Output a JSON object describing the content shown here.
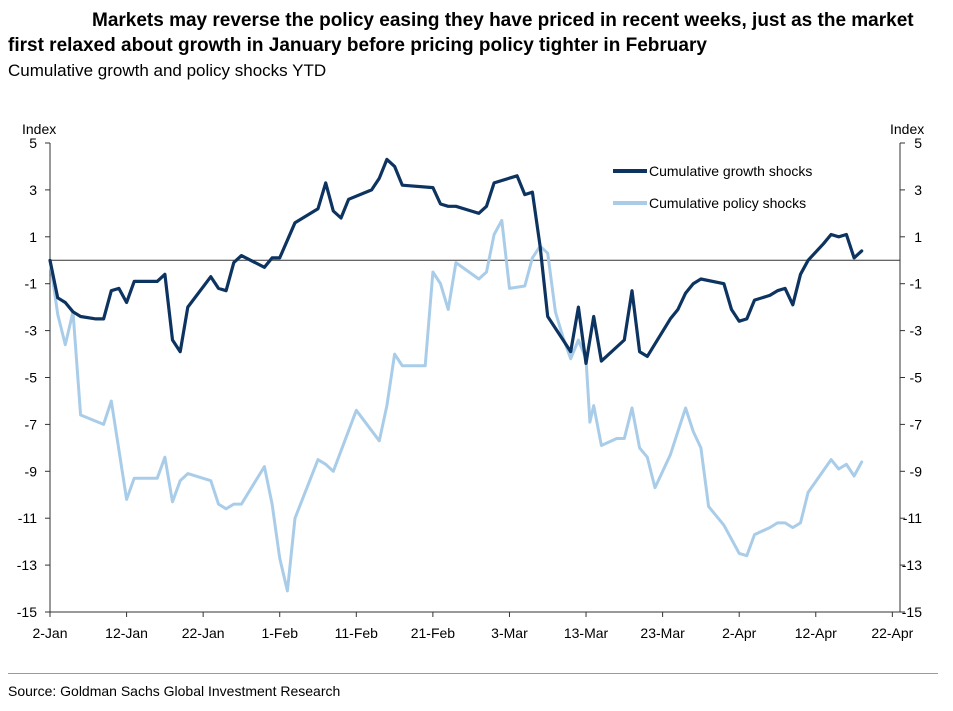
{
  "header": {
    "title": "Markets may reverse the policy easing they have priced in recent weeks, just as the market first relaxed about growth in January before pricing policy tighter in February",
    "subtitle": "Cumulative growth and policy shocks YTD"
  },
  "footer": {
    "source": "Source: Goldman Sachs Global Investment Research"
  },
  "chart_data": {
    "type": "line",
    "ylabel_left": "Index",
    "ylabel_right": "Index",
    "ylim": [
      -15,
      5
    ],
    "yticks": [
      5,
      3,
      1,
      -1,
      -3,
      -5,
      -7,
      -9,
      -11,
      -13,
      -15
    ],
    "xlim": [
      0,
      111
    ],
    "xticks": [
      {
        "label": "2-Jan",
        "day": 0
      },
      {
        "label": "12-Jan",
        "day": 10
      },
      {
        "label": "22-Jan",
        "day": 20
      },
      {
        "label": "1-Feb",
        "day": 30
      },
      {
        "label": "11-Feb",
        "day": 40
      },
      {
        "label": "21-Feb",
        "day": 50
      },
      {
        "label": "3-Mar",
        "day": 60
      },
      {
        "label": "13-Mar",
        "day": 70
      },
      {
        "label": "23-Mar",
        "day": 80
      },
      {
        "label": "2-Apr",
        "day": 90
      },
      {
        "label": "12-Apr",
        "day": 100
      },
      {
        "label": "22-Apr",
        "day": 110
      }
    ],
    "legend_position": "top-right",
    "grid": false,
    "zero_line": true,
    "series": [
      {
        "name": "Cumulative growth shocks",
        "color": "#0d3461",
        "points": [
          [
            0,
            0
          ],
          [
            1,
            -1.6
          ],
          [
            2,
            -1.8
          ],
          [
            3,
            -2.2
          ],
          [
            4,
            -2.4
          ],
          [
            6,
            -2.5
          ],
          [
            7,
            -2.5
          ],
          [
            8,
            -1.3
          ],
          [
            9,
            -1.2
          ],
          [
            10,
            -1.8
          ],
          [
            11,
            -0.9
          ],
          [
            14,
            -0.9
          ],
          [
            15,
            -0.6
          ],
          [
            16,
            -3.4
          ],
          [
            17,
            -3.9
          ],
          [
            18,
            -2
          ],
          [
            21,
            -0.7
          ],
          [
            22,
            -1.2
          ],
          [
            23,
            -1.3
          ],
          [
            24,
            -0.1
          ],
          [
            25,
            0.2
          ],
          [
            28,
            -0.3
          ],
          [
            29,
            0.1
          ],
          [
            30,
            0.1
          ],
          [
            32,
            1.6
          ],
          [
            35,
            2.2
          ],
          [
            36,
            3.3
          ],
          [
            37,
            2.1
          ],
          [
            38,
            1.8
          ],
          [
            39,
            2.6
          ],
          [
            42,
            3
          ],
          [
            43,
            3.5
          ],
          [
            44,
            4.3
          ],
          [
            45,
            4
          ],
          [
            46,
            3.2
          ],
          [
            50,
            3.1
          ],
          [
            51,
            2.4
          ],
          [
            52,
            2.3
          ],
          [
            53,
            2.3
          ],
          [
            55,
            2.1
          ],
          [
            56,
            2
          ],
          [
            57,
            2.3
          ],
          [
            58,
            3.3
          ],
          [
            61,
            3.6
          ],
          [
            62,
            2.8
          ],
          [
            63,
            2.9
          ],
          [
            64,
            0.6
          ],
          [
            65,
            -2.4
          ],
          [
            67,
            -3.4
          ],
          [
            68,
            -3.9
          ],
          [
            69,
            -2
          ],
          [
            70,
            -4.4
          ],
          [
            71,
            -2.4
          ],
          [
            72,
            -4.3
          ],
          [
            75,
            -3.4
          ],
          [
            76,
            -1.3
          ],
          [
            77,
            -3.9
          ],
          [
            78,
            -4.1
          ],
          [
            81,
            -2.5
          ],
          [
            82,
            -2.1
          ],
          [
            83,
            -1.4
          ],
          [
            84,
            -1
          ],
          [
            85,
            -0.8
          ],
          [
            88,
            -1
          ],
          [
            89,
            -2.1
          ],
          [
            90,
            -2.6
          ],
          [
            91,
            -2.5
          ],
          [
            92,
            -1.7
          ],
          [
            94,
            -1.5
          ],
          [
            95,
            -1.3
          ],
          [
            96,
            -1.2
          ],
          [
            97,
            -1.9
          ],
          [
            98,
            -0.6
          ],
          [
            99,
            0
          ],
          [
            101,
            0.7
          ],
          [
            102,
            1.1
          ],
          [
            103,
            1
          ],
          [
            104,
            1.1
          ],
          [
            105,
            0.1
          ],
          [
            106,
            0.4
          ]
        ]
      },
      {
        "name": "Cumulative policy shocks",
        "color": "#a9cde9",
        "points": [
          [
            0,
            0
          ],
          [
            1,
            -2.3
          ],
          [
            2,
            -3.6
          ],
          [
            3,
            -2.2
          ],
          [
            4,
            -6.6
          ],
          [
            7,
            -7
          ],
          [
            8,
            -6
          ],
          [
            10,
            -10.2
          ],
          [
            11,
            -9.3
          ],
          [
            14,
            -9.3
          ],
          [
            15,
            -8.4
          ],
          [
            16,
            -10.3
          ],
          [
            17,
            -9.4
          ],
          [
            18,
            -9.1
          ],
          [
            21,
            -9.4
          ],
          [
            22,
            -10.4
          ],
          [
            23,
            -10.6
          ],
          [
            24,
            -10.4
          ],
          [
            25,
            -10.4
          ],
          [
            28,
            -8.8
          ],
          [
            29,
            -10.4
          ],
          [
            30,
            -12.7
          ],
          [
            31,
            -14.1
          ],
          [
            32,
            -11
          ],
          [
            35,
            -8.5
          ],
          [
            36,
            -8.7
          ],
          [
            37,
            -9
          ],
          [
            40,
            -6.4
          ],
          [
            43,
            -7.7
          ],
          [
            44,
            -6.2
          ],
          [
            45,
            -4
          ],
          [
            46,
            -4.5
          ],
          [
            49,
            -4.5
          ],
          [
            50,
            -0.5
          ],
          [
            51,
            -1
          ],
          [
            52,
            -2.1
          ],
          [
            53,
            -0.1
          ],
          [
            56,
            -0.8
          ],
          [
            57,
            -0.5
          ],
          [
            58,
            1.1
          ],
          [
            59,
            1.7
          ],
          [
            60,
            -1.2
          ],
          [
            62,
            -1.1
          ],
          [
            63,
            0.1
          ],
          [
            64,
            0.6
          ],
          [
            65,
            0.3
          ],
          [
            66,
            -2.2
          ],
          [
            67,
            -3.3
          ],
          [
            68,
            -4.2
          ],
          [
            69,
            -3.4
          ],
          [
            70,
            -4.2
          ],
          [
            70.5,
            -6.9
          ],
          [
            71,
            -6.2
          ],
          [
            72,
            -7.9
          ],
          [
            74,
            -7.6
          ],
          [
            75,
            -7.6
          ],
          [
            76,
            -6.3
          ],
          [
            77,
            -8
          ],
          [
            78,
            -8.4
          ],
          [
            79,
            -9.7
          ],
          [
            81,
            -8.3
          ],
          [
            82,
            -7.3
          ],
          [
            83,
            -6.3
          ],
          [
            84,
            -7.3
          ],
          [
            85,
            -8
          ],
          [
            86,
            -10.5
          ],
          [
            88,
            -11.3
          ],
          [
            90,
            -12.5
          ],
          [
            91,
            -12.6
          ],
          [
            92,
            -11.7
          ],
          [
            94,
            -11.4
          ],
          [
            95,
            -11.2
          ],
          [
            96,
            -11.2
          ],
          [
            97,
            -11.4
          ],
          [
            98,
            -11.2
          ],
          [
            99,
            -9.9
          ],
          [
            102,
            -8.5
          ],
          [
            103,
            -8.9
          ],
          [
            104,
            -8.7
          ],
          [
            105,
            -9.2
          ],
          [
            106,
            -8.6
          ]
        ]
      }
    ]
  }
}
